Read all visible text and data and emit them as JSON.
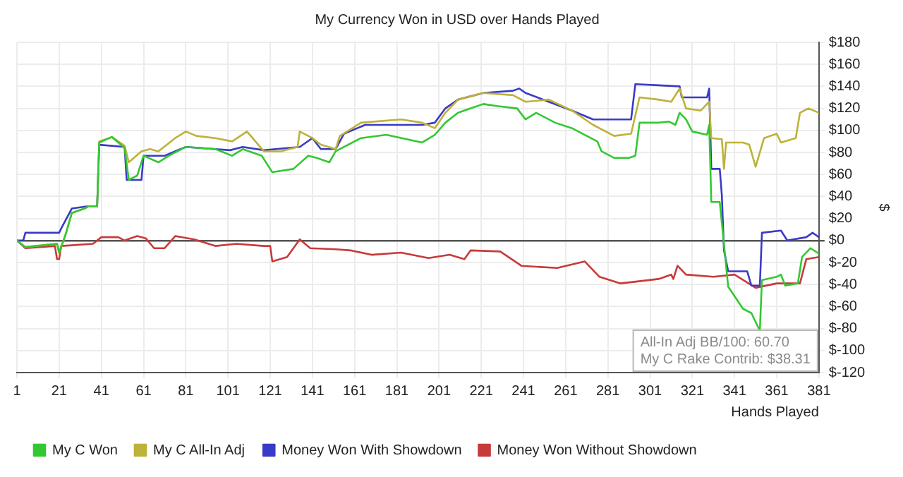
{
  "chart_data": {
    "type": "line",
    "title": "My Currency Won in USD over Hands Played",
    "xlabel": "Hands Played",
    "ylabel": "$",
    "xlim": [
      1,
      381
    ],
    "xticks": [
      1,
      21,
      41,
      61,
      81,
      101,
      121,
      141,
      161,
      181,
      201,
      221,
      241,
      261,
      281,
      301,
      321,
      341,
      361,
      381
    ],
    "ylim": [
      -120,
      180
    ],
    "yticks": [
      {
        "value": -120,
        "label": "$-120"
      },
      {
        "value": -100,
        "label": "$-100"
      },
      {
        "value": -80,
        "label": "$-80"
      },
      {
        "value": -60,
        "label": "$-60"
      },
      {
        "value": -40,
        "label": "$-40"
      },
      {
        "value": -20,
        "label": "$-20"
      },
      {
        "value": 0,
        "label": "$0"
      },
      {
        "value": 20,
        "label": "$20"
      },
      {
        "value": 40,
        "label": "$40"
      },
      {
        "value": 60,
        "label": "$60"
      },
      {
        "value": 80,
        "label": "$80"
      },
      {
        "value": 100,
        "label": "$100"
      },
      {
        "value": 120,
        "label": "$120"
      },
      {
        "value": 140,
        "label": "$140"
      },
      {
        "value": 160,
        "label": "$160"
      },
      {
        "value": 180,
        "label": "$180"
      }
    ],
    "grid": true,
    "legend": "bottom",
    "marker": "none",
    "line_style": "solid",
    "annotations": [
      "All-In Adj BB/100: 60.70",
      "My C Rake Contrib: $38.31"
    ],
    "series": [
      {
        "name": "My C Won",
        "color": "#33c833",
        "x": [
          1,
          5,
          20,
          21,
          24,
          27,
          33,
          35,
          39,
          40,
          46,
          52,
          54,
          58,
          61,
          68,
          73,
          81,
          95,
          103,
          108,
          117,
          122,
          132,
          139,
          143,
          149,
          152,
          164,
          176,
          193,
          199,
          204,
          210,
          216,
          222,
          229,
          238,
          242,
          247,
          256,
          264,
          270,
          276,
          278,
          284,
          291,
          294,
          296,
          305,
          310,
          313,
          315,
          318,
          321,
          328,
          329,
          330,
          334,
          338,
          345,
          349,
          353,
          354,
          361,
          363,
          365,
          371,
          373,
          377,
          381
        ],
        "values": [
          0,
          -6,
          -3,
          -11,
          5,
          25,
          29,
          31,
          31,
          89,
          94,
          84,
          55,
          59,
          77,
          71,
          77,
          85,
          83,
          77,
          83,
          77,
          62,
          65,
          77,
          75,
          71,
          81,
          93,
          96,
          89,
          96,
          107,
          116,
          120,
          124,
          122,
          120,
          110,
          116,
          107,
          102,
          96,
          90,
          81,
          75,
          75,
          77,
          107,
          107,
          108,
          105,
          116,
          110,
          99,
          96,
          105,
          35,
          35,
          -42,
          -62,
          -66,
          -82,
          -36,
          -33,
          -31,
          -41,
          -39,
          -15,
          -7,
          -12
        ]
      },
      {
        "name": "My C All-In Adj",
        "color": "#bdb23a",
        "x": [
          1,
          5,
          20,
          21,
          24,
          27,
          33,
          35,
          39,
          40,
          46,
          52,
          54,
          60,
          64,
          68,
          76,
          81,
          86,
          95,
          103,
          110,
          118,
          126,
          134,
          135,
          141,
          145,
          152,
          154,
          164,
          183,
          193,
          199,
          204,
          210,
          222,
          236,
          242,
          253,
          264,
          274,
          284,
          292,
          296,
          305,
          311,
          315,
          318,
          325,
          329,
          330,
          335,
          336,
          337,
          345,
          348,
          351,
          355,
          361,
          363,
          370,
          372,
          376,
          381
        ],
        "values": [
          0,
          -6,
          -3,
          -11,
          5,
          25,
          29,
          31,
          31,
          90,
          94,
          86,
          71,
          81,
          83,
          81,
          93,
          99,
          95,
          93,
          90,
          99,
          81,
          81,
          85,
          99,
          93,
          87,
          83,
          95,
          107,
          110,
          107,
          102,
          116,
          128,
          134,
          132,
          126,
          128,
          118,
          105,
          95,
          97,
          130,
          128,
          126,
          138,
          120,
          118,
          126,
          93,
          92,
          65,
          89,
          89,
          87,
          67,
          93,
          97,
          89,
          93,
          116,
          120,
          116
        ]
      },
      {
        "name": "Money Won With Showdown",
        "color": "#3a3ac8",
        "x": [
          1,
          4,
          5,
          21,
          22,
          27,
          34,
          39,
          40,
          52,
          53,
          60,
          61,
          71,
          81,
          102,
          108,
          118,
          135,
          141,
          145,
          152,
          156,
          166,
          183,
          193,
          199,
          204,
          210,
          222,
          236,
          239,
          242,
          253,
          264,
          274,
          292,
          294,
          305,
          315,
          316,
          328,
          329,
          330,
          334,
          335,
          336,
          338,
          347,
          349,
          353,
          354,
          363,
          366,
          375,
          378,
          381
        ],
        "values": [
          0,
          0,
          7,
          7,
          11,
          29,
          31,
          31,
          87,
          85,
          55,
          55,
          77,
          77,
          85,
          82,
          85,
          82,
          85,
          93,
          83,
          83,
          97,
          105,
          105,
          105,
          107,
          120,
          128,
          134,
          136,
          138,
          134,
          126,
          118,
          110,
          110,
          142,
          141,
          140,
          130,
          130,
          138,
          65,
          65,
          41,
          -9,
          -28,
          -28,
          -41,
          -41,
          7,
          9,
          0,
          3,
          7,
          3
        ]
      },
      {
        "name": "Money Won Without Showdown",
        "color": "#c83a3a",
        "x": [
          1,
          5,
          19,
          20,
          21,
          22,
          37,
          41,
          49,
          52,
          58,
          62,
          66,
          71,
          76,
          85,
          95,
          105,
          118,
          121,
          122,
          129,
          135,
          140,
          152,
          159,
          169,
          183,
          196,
          206,
          213,
          216,
          230,
          240,
          257,
          270,
          277,
          287,
          305,
          311,
          312,
          314,
          318,
          331,
          341,
          351,
          361,
          372,
          375,
          381
        ],
        "values": [
          0,
          -7,
          -5,
          -17,
          -17,
          -5,
          -3,
          3,
          3,
          0,
          4,
          2,
          -7,
          -7,
          4,
          1,
          -5,
          -3,
          -5,
          -5,
          -19,
          -15,
          1,
          -7,
          -8,
          -9,
          -13,
          -11,
          -16,
          -13,
          -17,
          -9,
          -10,
          -23,
          -25,
          -19,
          -33,
          -39,
          -35,
          -31,
          -35,
          -23,
          -31,
          -33,
          -31,
          -43,
          -39,
          -39,
          -17,
          -15
        ]
      }
    ]
  }
}
